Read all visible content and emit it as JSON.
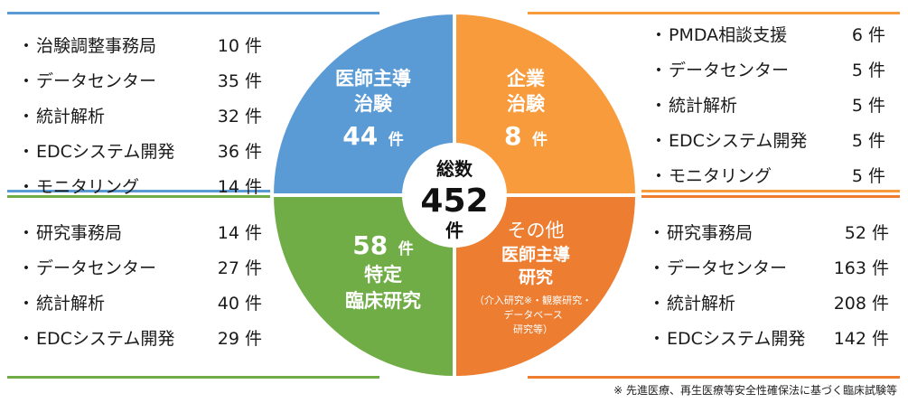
{
  "colors": {
    "blue": "#5b9bd5",
    "orange": "#f79b3c",
    "green": "#70ad47",
    "deep_orange": "#ec7d31",
    "center": "#ffffff"
  },
  "center": {
    "title": "総数",
    "value": "452",
    "unit": "件"
  },
  "quadrants": {
    "tl": {
      "title1": "医師主導",
      "title2": "治験",
      "count": "44",
      "unit": "件"
    },
    "tr": {
      "title1": "企業",
      "title2": "治験",
      "count": "8",
      "unit": "件"
    },
    "bl": {
      "count": "58",
      "unit": "件",
      "title1": "特定",
      "title2": "臨床研究"
    },
    "br": {
      "pre": "その他",
      "title1": "医師主導",
      "title2": "研究",
      "note1": "（介入研究※・観察研究・",
      "note2": "データベース",
      "note3": "研究等）"
    }
  },
  "lists": {
    "tl": [
      {
        "label": "治験調整事務局",
        "count": "10 件"
      },
      {
        "label": "データセンター",
        "count": "35 件"
      },
      {
        "label": "統計解析",
        "count": "32 件"
      },
      {
        "label": "EDCシステム開発",
        "count": "36 件"
      },
      {
        "label": "モニタリング",
        "count": "14 件"
      }
    ],
    "tr": [
      {
        "label": "PMDA相談支援",
        "count": "6 件"
      },
      {
        "label": "データセンター",
        "count": "5 件"
      },
      {
        "label": "統計解析",
        "count": "5 件"
      },
      {
        "label": "EDCシステム開発",
        "count": "5 件"
      },
      {
        "label": "モニタリング",
        "count": "5 件"
      }
    ],
    "bl": [
      {
        "label": "研究事務局",
        "count": "14 件"
      },
      {
        "label": "データセンター",
        "count": "27 件"
      },
      {
        "label": "統計解析",
        "count": "40 件"
      },
      {
        "label": "EDCシステム開発",
        "count": "29 件"
      }
    ],
    "br": [
      {
        "label": "研究事務局",
        "count": "52 件"
      },
      {
        "label": "データセンター",
        "count": "163 件"
      },
      {
        "label": "統計解析",
        "count": "208 件"
      },
      {
        "label": "EDCシステム開発",
        "count": "142 件"
      }
    ]
  },
  "bullet": "・",
  "footnote": "※ 先進医療、再生医療等安全性確保法に基づく臨床試験等"
}
